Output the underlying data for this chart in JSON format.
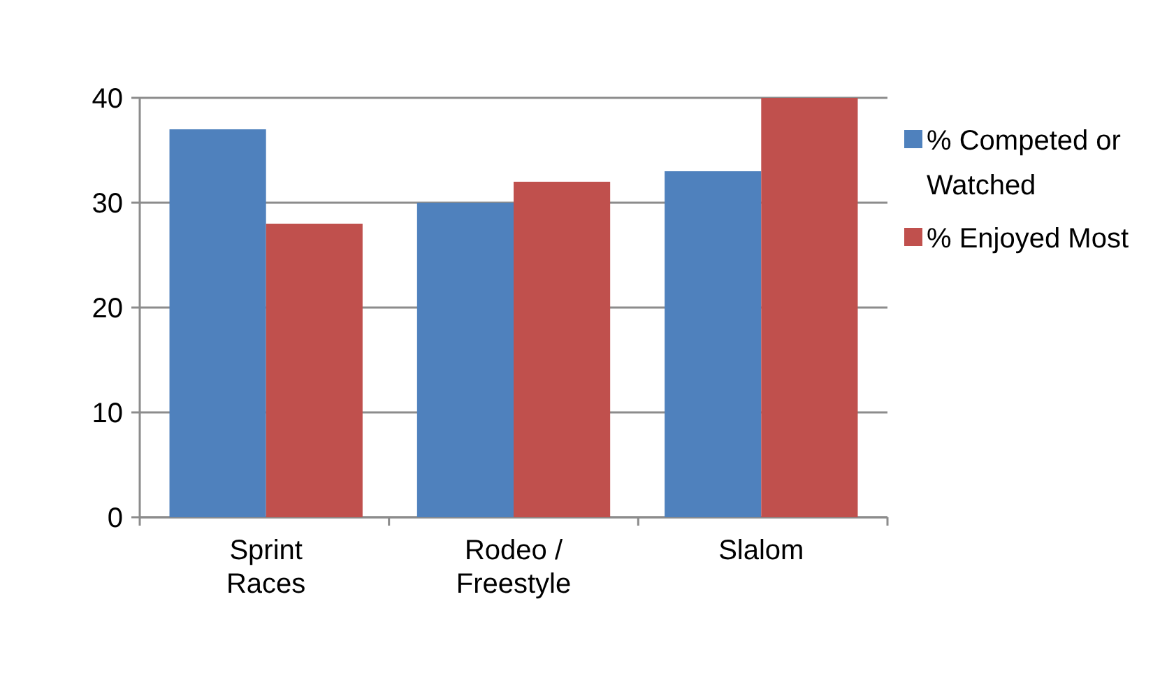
{
  "chart_data": {
    "type": "bar",
    "categories": [
      "Sprint Races",
      "Rodeo / Freestyle",
      "Slalom"
    ],
    "series": [
      {
        "name": "% Competed or Watched",
        "color": "#4f81bd",
        "values": [
          37,
          30,
          33
        ]
      },
      {
        "name": "% Enjoyed Most",
        "color": "#c0504d",
        "values": [
          28,
          32,
          40
        ]
      }
    ],
    "ylim": [
      0,
      40
    ],
    "yticks": [
      0,
      10,
      20,
      30,
      40
    ],
    "grid": "y",
    "legend": "right"
  }
}
